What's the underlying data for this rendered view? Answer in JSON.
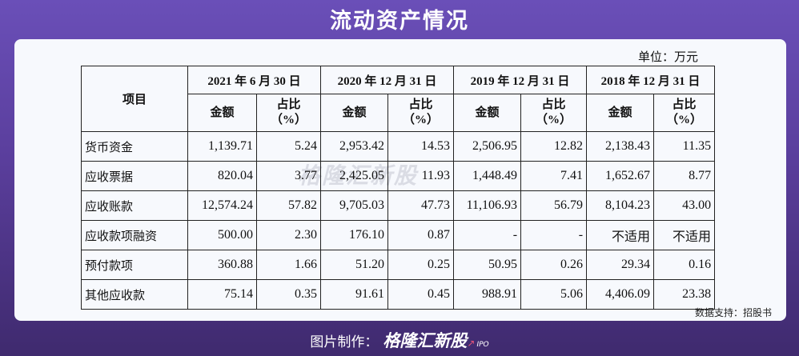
{
  "page": {
    "title": "流动资产情况",
    "unit": "单位：万元",
    "source": "数据支持：招股书",
    "watermark": "格隆汇新股",
    "footer_prefix": "图片制作：",
    "footer_brand": "格隆汇新股",
    "footer_ipo": "IPO"
  },
  "table": {
    "item_header": "项目",
    "amount_header": "金额",
    "ratio_header_line1": "占比",
    "ratio_header_line2": "（%）",
    "periods": [
      "2021 年 6 月 30 日",
      "2020 年 12 月 31 日",
      "2019 年 12 月 31 日",
      "2018 年 12 月 31 日"
    ],
    "rows": [
      {
        "label": "货币资金",
        "values": [
          "1,139.71",
          "5.24",
          "2,953.42",
          "14.53",
          "2,506.95",
          "12.82",
          "2,138.43",
          "11.35"
        ]
      },
      {
        "label": "应收票据",
        "values": [
          "820.04",
          "3.77",
          "2,425.05",
          "11.93",
          "1,448.49",
          "7.41",
          "1,652.67",
          "8.77"
        ]
      },
      {
        "label": "应收账款",
        "values": [
          "12,574.24",
          "57.82",
          "9,705.03",
          "47.73",
          "11,106.93",
          "56.79",
          "8,104.23",
          "43.00"
        ]
      },
      {
        "label": "应收款项融资",
        "values": [
          "500.00",
          "2.30",
          "176.10",
          "0.87",
          "-",
          "-",
          "不适用",
          "不适用"
        ]
      },
      {
        "label": "预付款项",
        "values": [
          "360.88",
          "1.66",
          "51.20",
          "0.25",
          "50.95",
          "0.26",
          "29.34",
          "0.16"
        ]
      },
      {
        "label": "其他应收款",
        "values": [
          "75.14",
          "0.35",
          "91.61",
          "0.45",
          "988.91",
          "5.06",
          "4,406.09",
          "23.38"
        ]
      }
    ]
  }
}
